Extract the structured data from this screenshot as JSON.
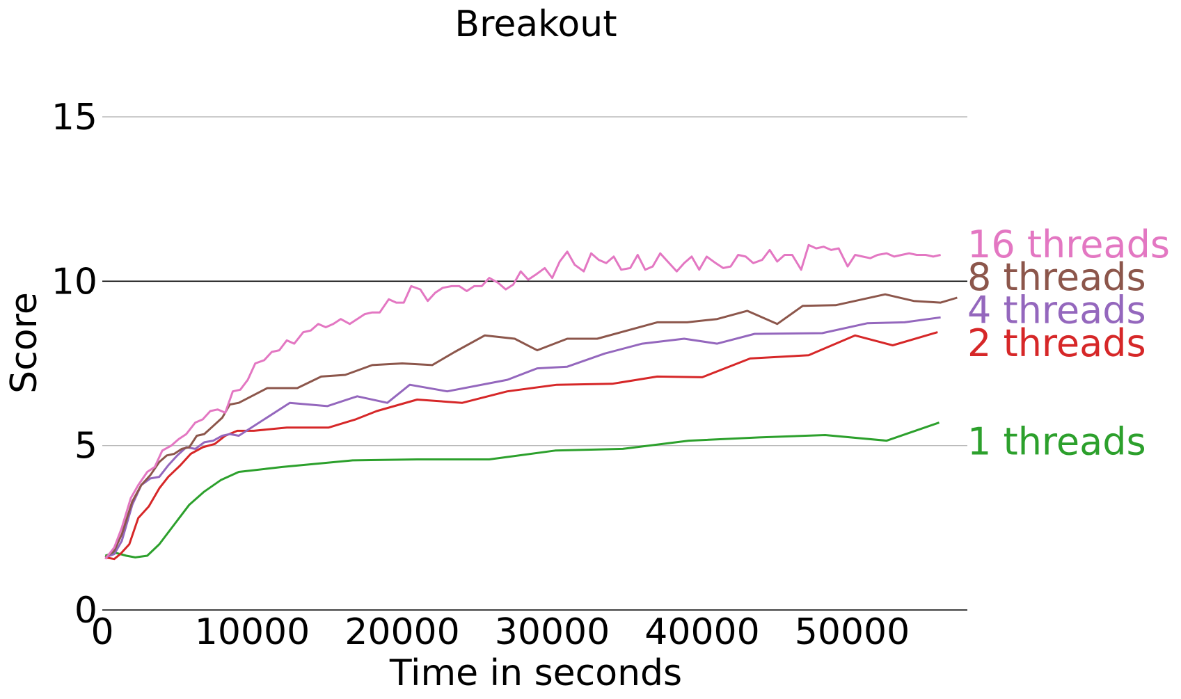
{
  "chart_data": {
    "type": "line",
    "title": "Breakout",
    "xlabel": "Time in seconds",
    "ylabel": "Score",
    "xlim": [
      0,
      58000
    ],
    "ylim": [
      0,
      15
    ],
    "x_ticks": [
      0,
      10000,
      20000,
      30000,
      40000,
      50000
    ],
    "x_tick_labels": [
      "0",
      "10000",
      "20000",
      "30000",
      "40000",
      "50000"
    ],
    "y_ticks": [
      0,
      5,
      10,
      15
    ],
    "y_tick_labels": [
      "0",
      "5",
      "10",
      "15"
    ],
    "grid": "horizontal",
    "legend": "inline-right",
    "series": [
      {
        "name": "1 threads",
        "color": "#2ca02c",
        "x": [
          200,
          800,
          1600,
          2200,
          3000,
          3800,
          4800,
          5800,
          6800,
          7900,
          9100,
          12000,
          16700,
          21000,
          25800,
          30200,
          34700,
          39100,
          43800,
          48200,
          52300,
          55800
        ],
        "y": [
          1.65,
          1.75,
          1.65,
          1.6,
          1.65,
          2.0,
          2.6,
          3.2,
          3.6,
          3.95,
          4.2,
          4.35,
          4.55,
          4.58,
          4.58,
          4.85,
          4.9,
          5.15,
          5.25,
          5.32,
          5.15,
          5.7
        ]
      },
      {
        "name": "2 threads",
        "color": "#d62728",
        "x": [
          200,
          800,
          1200,
          1800,
          2400,
          3100,
          3800,
          4400,
          5200,
          5900,
          6700,
          7500,
          8200,
          9000,
          10100,
          12300,
          15100,
          16900,
          18300,
          21000,
          24000,
          27000,
          30300,
          34000,
          37000,
          40000,
          43200,
          47100,
          50200,
          52700,
          55700
        ],
        "y": [
          1.6,
          1.55,
          1.7,
          2.0,
          2.8,
          3.15,
          3.7,
          4.05,
          4.4,
          4.75,
          4.95,
          5.05,
          5.3,
          5.45,
          5.45,
          5.55,
          5.55,
          5.8,
          6.05,
          6.4,
          6.3,
          6.65,
          6.85,
          6.88,
          7.1,
          7.08,
          7.65,
          7.75,
          8.35,
          8.05,
          8.45
        ]
      },
      {
        "name": "4 threads",
        "color": "#9467bd",
        "x": [
          200,
          800,
          1300,
          2000,
          2600,
          3200,
          3800,
          4400,
          5000,
          5600,
          6200,
          6800,
          7400,
          8000,
          8500,
          9100,
          12500,
          15000,
          17000,
          19000,
          20500,
          23000,
          27000,
          29000,
          31000,
          33500,
          36000,
          38800,
          41000,
          43500,
          48000,
          51000,
          53500,
          55900
        ],
        "y": [
          1.6,
          1.7,
          2.1,
          3.2,
          3.8,
          4.0,
          4.05,
          4.4,
          4.7,
          4.95,
          4.9,
          5.1,
          5.15,
          5.3,
          5.35,
          5.3,
          6.3,
          6.2,
          6.5,
          6.3,
          6.85,
          6.65,
          7.0,
          7.35,
          7.4,
          7.8,
          8.1,
          8.25,
          8.1,
          8.4,
          8.42,
          8.72,
          8.75,
          8.9
        ]
      },
      {
        "name": "8 threads",
        "color": "#8c564b",
        "x": [
          200,
          800,
          1300,
          2000,
          2600,
          3200,
          3800,
          4300,
          4800,
          5300,
          5800,
          6300,
          6800,
          7400,
          8000,
          8500,
          9100,
          11000,
          13000,
          14600,
          16200,
          18000,
          20000,
          22000,
          23500,
          25500,
          27500,
          29000,
          31000,
          33000,
          37000,
          39000,
          41000,
          43000,
          45000,
          46700,
          48900,
          52200,
          54100,
          55900,
          57000
        ],
        "y": [
          1.6,
          1.8,
          2.3,
          3.3,
          3.8,
          4.1,
          4.5,
          4.7,
          4.75,
          4.9,
          4.95,
          5.3,
          5.35,
          5.6,
          5.85,
          6.25,
          6.3,
          6.75,
          6.75,
          7.1,
          7.15,
          7.45,
          7.5,
          7.45,
          7.85,
          8.35,
          8.25,
          7.9,
          8.25,
          8.25,
          8.75,
          8.75,
          8.85,
          9.1,
          8.7,
          9.25,
          9.27,
          9.6,
          9.4,
          9.35,
          9.5
        ]
      },
      {
        "name": "16 threads",
        "color": "#e377c2",
        "x": [
          200,
          800,
          1300,
          1900,
          2400,
          3000,
          3500,
          4000,
          4600,
          5100,
          5600,
          6200,
          6700,
          7200,
          7700,
          8200,
          8700,
          9200,
          9700,
          10200,
          10800,
          11300,
          11800,
          12300,
          12800,
          13400,
          13900,
          14400,
          14900,
          15400,
          15900,
          16500,
          17000,
          17500,
          18000,
          18500,
          19100,
          19600,
          20100,
          20600,
          21200,
          21700,
          22200,
          22700,
          23300,
          23800,
          24300,
          24800,
          25300,
          25800,
          26400,
          26900,
          27400,
          27900,
          28400,
          28900,
          29500,
          30000,
          30500,
          31000,
          31500,
          32100,
          32600,
          33100,
          33600,
          34100,
          34600,
          35200,
          35700,
          36200,
          36700,
          37200,
          37700,
          38300,
          38800,
          39300,
          39800,
          40300,
          40900,
          41400,
          41900,
          42400,
          42900,
          43400,
          44000,
          44500,
          45000,
          45500,
          46000,
          46600,
          47100,
          47600,
          48100,
          48600,
          49100,
          49700,
          50200,
          50700,
          51200,
          51700,
          52300,
          52800,
          53300,
          53800,
          54300,
          54900,
          55400,
          55900
        ],
        "y": [
          1.55,
          1.9,
          2.5,
          3.4,
          3.8,
          4.2,
          4.35,
          4.85,
          5.0,
          5.2,
          5.35,
          5.7,
          5.8,
          6.05,
          6.1,
          6.0,
          6.65,
          6.7,
          7.0,
          7.5,
          7.6,
          7.85,
          7.9,
          8.2,
          8.1,
          8.45,
          8.5,
          8.7,
          8.6,
          8.7,
          8.85,
          8.7,
          8.85,
          9.0,
          9.05,
          9.05,
          9.45,
          9.35,
          9.35,
          9.85,
          9.75,
          9.4,
          9.65,
          9.8,
          9.85,
          9.85,
          9.7,
          9.85,
          9.85,
          10.1,
          9.95,
          9.75,
          9.9,
          10.3,
          10.05,
          10.2,
          10.4,
          10.1,
          10.6,
          10.9,
          10.5,
          10.3,
          10.85,
          10.65,
          10.55,
          10.75,
          10.35,
          10.4,
          10.8,
          10.35,
          10.45,
          10.85,
          10.6,
          10.3,
          10.55,
          10.75,
          10.35,
          10.75,
          10.55,
          10.4,
          10.45,
          10.8,
          10.75,
          10.55,
          10.65,
          10.95,
          10.6,
          10.8,
          10.8,
          10.35,
          11.1,
          11.0,
          11.05,
          10.95,
          11.0,
          10.45,
          10.8,
          10.75,
          10.7,
          10.8,
          10.85,
          10.75,
          10.8,
          10.85,
          10.8,
          10.8,
          10.75,
          10.8
        ]
      }
    ]
  }
}
